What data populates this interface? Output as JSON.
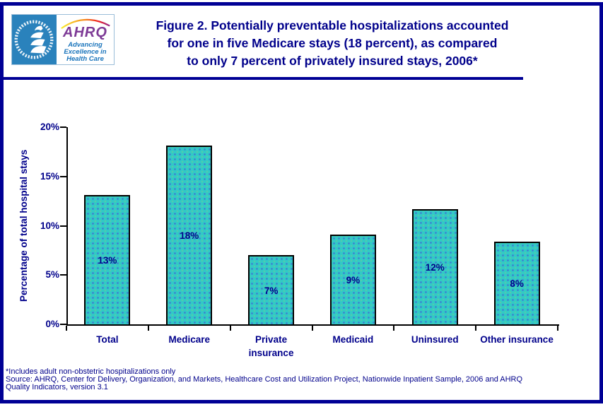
{
  "header": {
    "logo": {
      "hhs_seal": "U.S. Department of Health and Human Services eagle seal",
      "acronym": "AHRQ",
      "tagline_lines": [
        "Advancing",
        "Excellence in",
        "Health Care"
      ]
    },
    "title_lines": [
      "Figure 2. Potentially preventable hospitalizations accounted",
      "for one in five Medicare stays (18 percent), as compared",
      "to only 7 percent of privately insured stays, 2006*"
    ]
  },
  "chart_data": {
    "type": "bar",
    "title": "",
    "categories": [
      "Total",
      "Medicare",
      "Private insurance",
      "Medicaid",
      "Uninsured",
      "Other insurance"
    ],
    "category_lines": [
      [
        "Total"
      ],
      [
        "Medicare"
      ],
      [
        "Private",
        "insurance"
      ],
      [
        "Medicaid"
      ],
      [
        "Uninsured"
      ],
      [
        "Other insurance"
      ]
    ],
    "values": [
      13.1,
      18.15,
      7.0,
      9.1,
      11.7,
      8.4
    ],
    "bar_labels": [
      "13%",
      "18%",
      "7%",
      "9%",
      "12%",
      "8%"
    ],
    "xlabel": "",
    "ylabel": "Percentage of total hospital stays",
    "ylim": [
      0,
      20
    ],
    "yticks": [
      {
        "value": 0,
        "label": "0%"
      },
      {
        "value": 5,
        "label": "5%"
      },
      {
        "value": 10,
        "label": "10%"
      },
      {
        "value": 15,
        "label": "15%"
      },
      {
        "value": 20,
        "label": "20%"
      }
    ],
    "grid": false,
    "legend": "none",
    "bar_color": "#32C9C6"
  },
  "footer": {
    "note": "*Includes adult non-obstetric hospitalizations only",
    "source_lines": [
      "Source: AHRQ, Center for Delivery, Organization, and Markets, Healthcare Cost and Utilization Project, Nationwide Inpatient Sample, 2006 and AHRQ",
      "Quality Indicators, version 3.1"
    ]
  },
  "colors": {
    "text_navy": "#00008B",
    "border_navy": "#000095",
    "bar_fill": "#32C9C6",
    "hhs_blue": "#2A82BC",
    "ahrq_purple": "#7D3A96",
    "tagline_blue": "#1B75BC"
  }
}
